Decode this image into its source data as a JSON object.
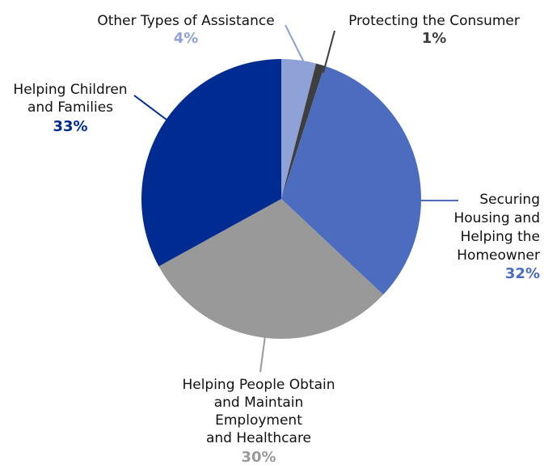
{
  "chart_data": {
    "type": "pie",
    "title": "",
    "start": "top",
    "direction": "clockwise",
    "slices": [
      {
        "label_lines": [
          "Other Types of Assistance"
        ],
        "value": 4,
        "percent_label": "4%",
        "color": "#8fa2d8"
      },
      {
        "label_lines": [
          "Protecting the Consumer"
        ],
        "value": 1,
        "percent_label": "1%",
        "color": "#3e3e3e"
      },
      {
        "label_lines": [
          "Securing",
          "Housing and",
          "Helping the",
          "Homeowner"
        ],
        "value": 32,
        "percent_label": "32%",
        "color": "#4b6cbf"
      },
      {
        "label_lines": [
          "Helping People Obtain",
          "and Maintain",
          "Employment",
          "and Healthcare"
        ],
        "value": 30,
        "percent_label": "30%",
        "color": "#999999"
      },
      {
        "label_lines": [
          "Helping Children",
          "and Families"
        ],
        "value": 33,
        "percent_label": "33%",
        "color": "#002c92"
      }
    ]
  }
}
